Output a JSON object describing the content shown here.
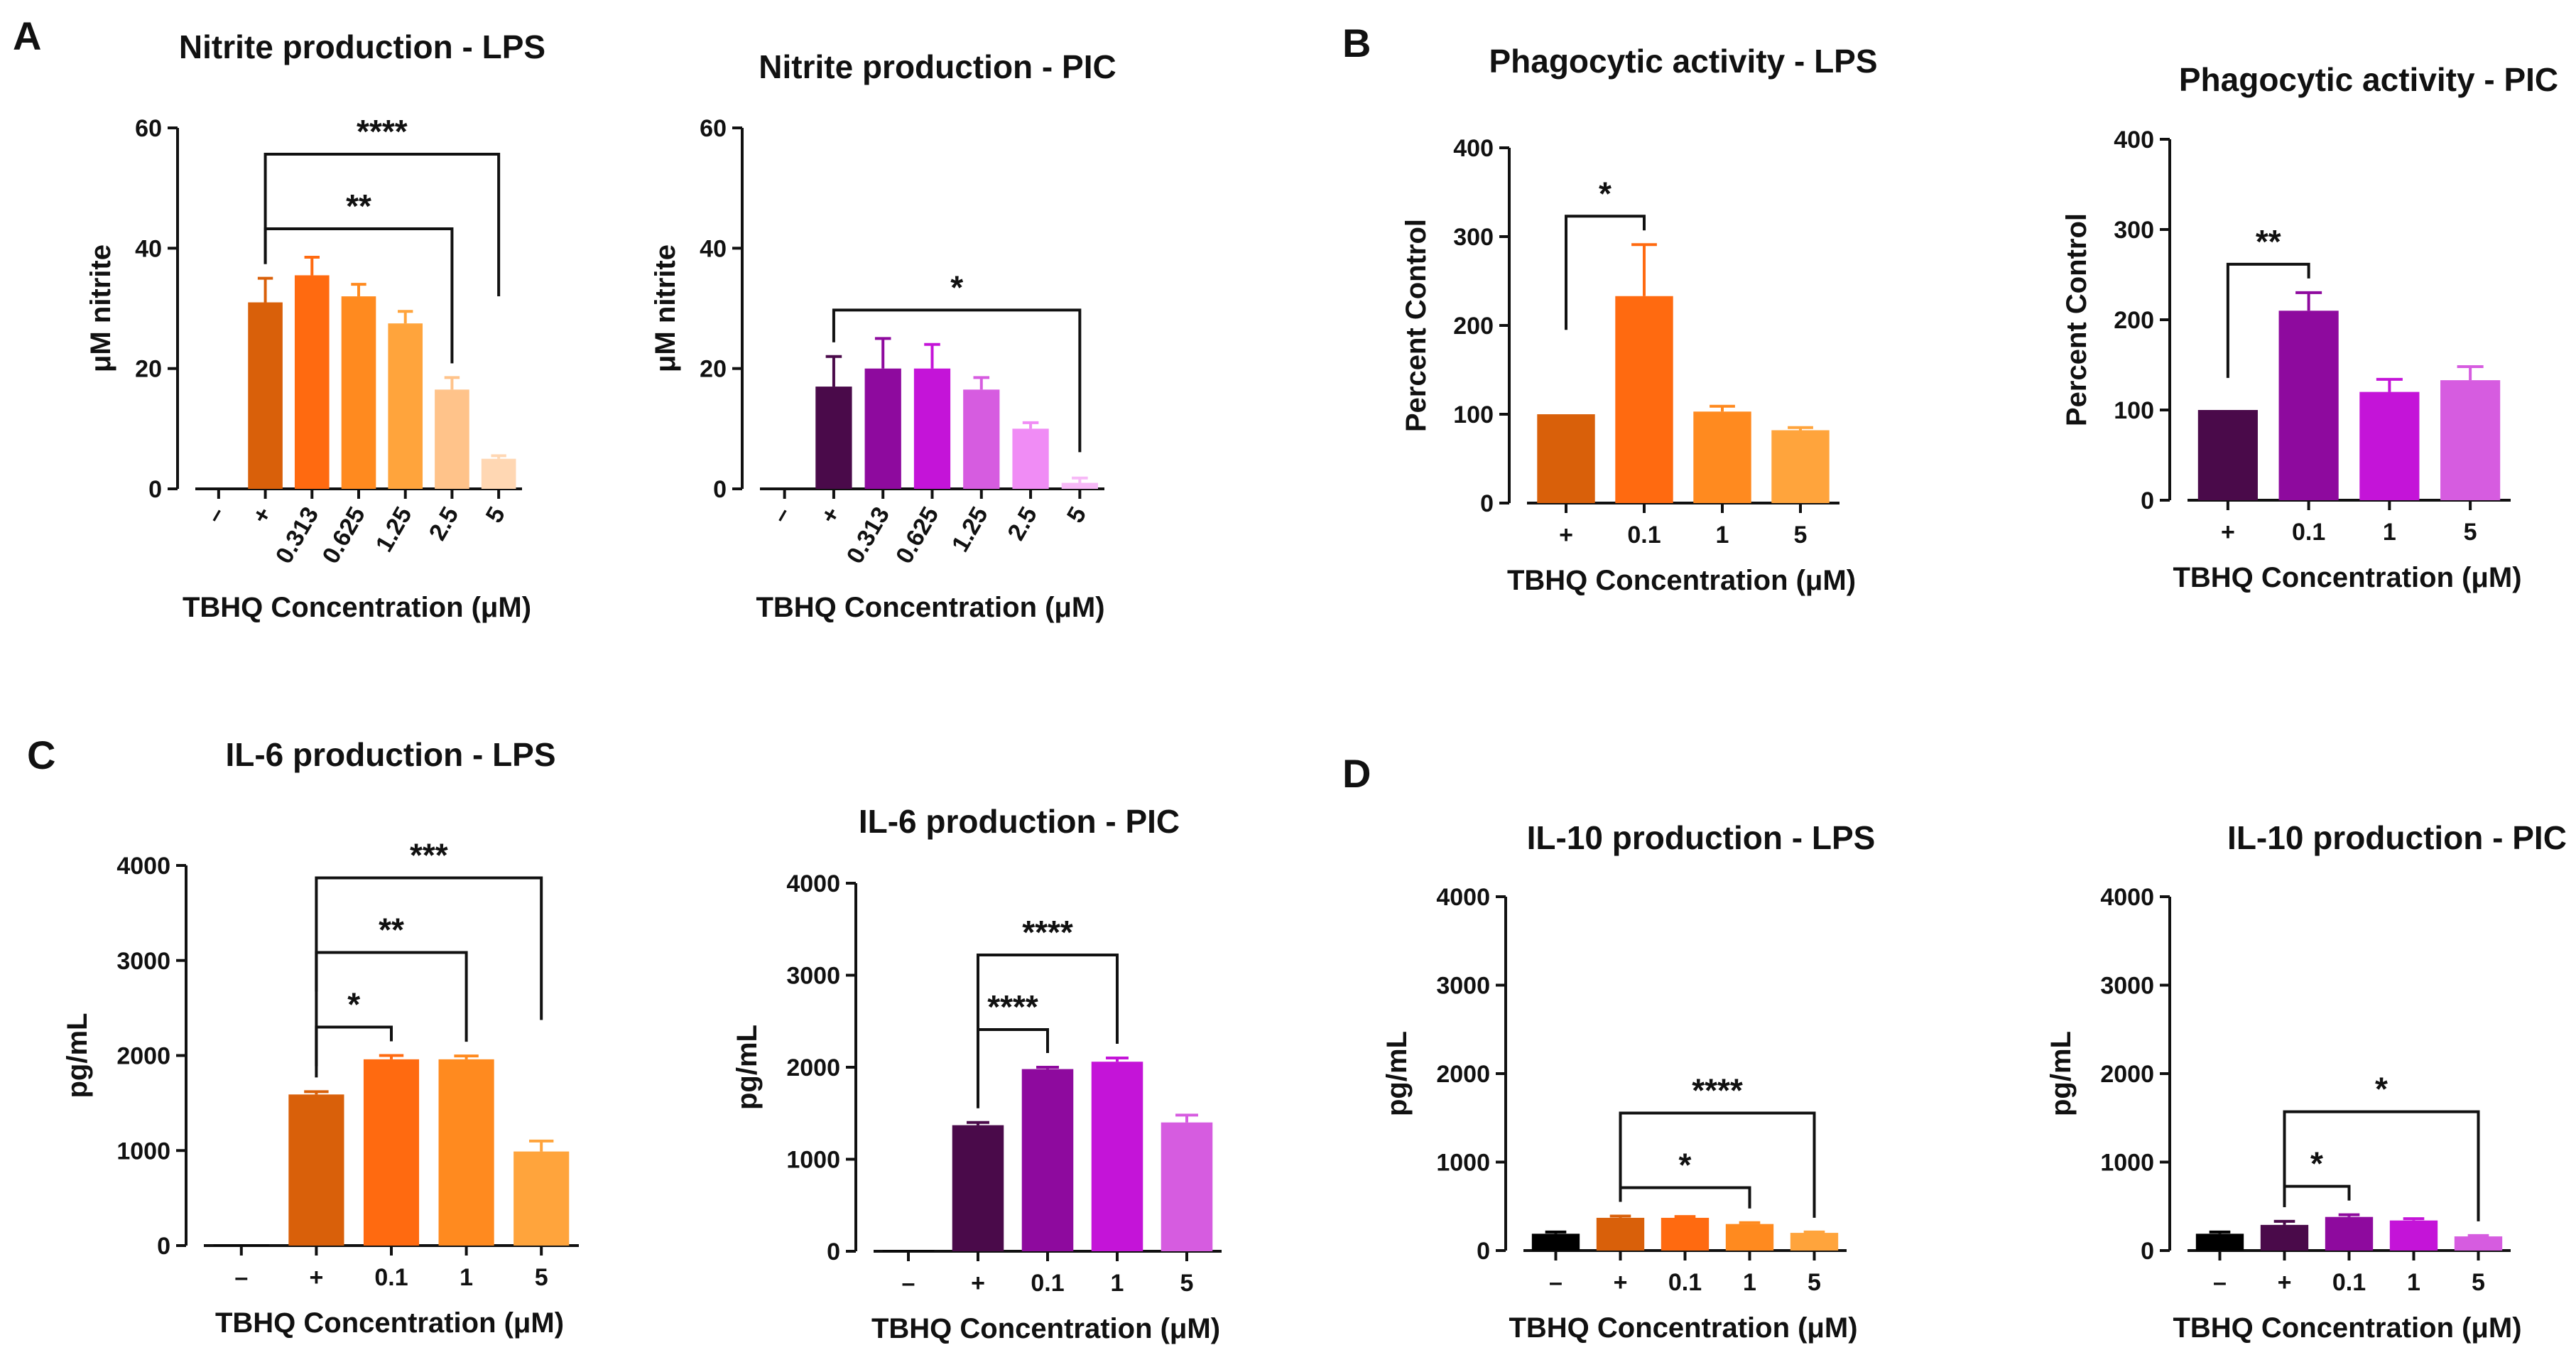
{
  "panel_letters": [
    "A",
    "B",
    "C",
    "D"
  ],
  "chart_data": [
    {
      "type": "bar",
      "title": "Nitrite production - LPS",
      "xlabel": "TBHQ Concentration (μM)",
      "ylabel": "μM nitrite",
      "ylim": [
        0,
        60
      ],
      "yticks": [
        "0",
        "20",
        "40",
        "60"
      ],
      "categories": [
        "–",
        "+",
        "0.313",
        "0.625",
        "1.25",
        "2.5",
        "5"
      ],
      "values": [
        0,
        31,
        35.5,
        32,
        27.5,
        16.5,
        5
      ],
      "errors": [
        0,
        4,
        3,
        2,
        2,
        2,
        0.5
      ],
      "colors": [
        "#000000",
        "#d9600a",
        "#ff6a10",
        "#ff8a1f",
        "#ffa43c",
        "#ffc38a",
        "#ffd7b3"
      ],
      "significance": [
        {
          "from": 1,
          "to": 6,
          "label": "****"
        },
        {
          "from": 1,
          "to": 5,
          "label": "**"
        }
      ]
    },
    {
      "type": "bar",
      "title": "Nitrite production - PIC",
      "xlabel": "TBHQ Concentration (μM)",
      "ylabel": "μM nitrite",
      "ylim": [
        0,
        60
      ],
      "yticks": [
        "0",
        "20",
        "40",
        "60"
      ],
      "categories": [
        "–",
        "+",
        "0.313",
        "0.625",
        "1.25",
        "2.5",
        "5"
      ],
      "values": [
        0,
        17,
        20,
        20,
        16.5,
        10,
        1
      ],
      "errors": [
        0,
        5,
        5,
        4,
        2,
        1,
        0.8
      ],
      "colors": [
        "#000000",
        "#4a0a4a",
        "#8e0a9e",
        "#c414d8",
        "#d65ce0",
        "#f08cf5",
        "#f7b9f7"
      ],
      "significance": [
        {
          "from": 1,
          "to": 6,
          "label": "*"
        }
      ]
    },
    {
      "type": "bar",
      "title": "Phagocytic activity - LPS",
      "xlabel": "TBHQ Concentration (μM)",
      "ylabel": "Percent Control",
      "ylim": [
        0,
        400
      ],
      "yticks": [
        "0",
        "100",
        "200",
        "300",
        "400"
      ],
      "categories": [
        "+",
        "0.1",
        "1",
        "5"
      ],
      "values": [
        100,
        233,
        103,
        82
      ],
      "errors": [
        0,
        58,
        6,
        3
      ],
      "colors": [
        "#d9600a",
        "#ff6a10",
        "#ff8a1f",
        "#ffa43c"
      ],
      "significance": [
        {
          "from": 0,
          "to": 1,
          "label": "*"
        }
      ]
    },
    {
      "type": "bar",
      "title": "Phagocytic activity - PIC",
      "xlabel": "TBHQ Concentration (μM)",
      "ylabel": "Percent Control",
      "ylim": [
        0,
        400
      ],
      "yticks": [
        "0",
        "100",
        "200",
        "300",
        "400"
      ],
      "categories": [
        "+",
        "0.1",
        "1",
        "5"
      ],
      "values": [
        100,
        210,
        120,
        133
      ],
      "errors": [
        0,
        20,
        14,
        15
      ],
      "colors": [
        "#4a0a4a",
        "#8e0a9e",
        "#c414d8",
        "#d65ce0"
      ],
      "significance": [
        {
          "from": 0,
          "to": 1,
          "label": "**"
        }
      ]
    },
    {
      "type": "bar",
      "title": "IL-6 production - LPS",
      "xlabel": "TBHQ Concentration (μM)",
      "ylabel": "pg/mL",
      "ylim": [
        0,
        4000
      ],
      "yticks": [
        "0",
        "1000",
        "2000",
        "3000",
        "4000"
      ],
      "categories": [
        "–",
        "+",
        "0.1",
        "1",
        "5"
      ],
      "values": [
        10,
        1590,
        1960,
        1960,
        990
      ],
      "errors": [
        0,
        30,
        40,
        35,
        110
      ],
      "colors": [
        "#000000",
        "#d9600a",
        "#ff6a10",
        "#ff8a1f",
        "#ffa43c"
      ],
      "significance": [
        {
          "from": 1,
          "to": 4,
          "label": "***"
        },
        {
          "from": 1,
          "to": 3,
          "label": "**"
        },
        {
          "from": 1,
          "to": 2,
          "label": "*"
        }
      ]
    },
    {
      "type": "bar",
      "title": "IL-6 production - PIC",
      "xlabel": "TBHQ Concentration (μM)",
      "ylabel": "pg/mL",
      "ylim": [
        0,
        4000
      ],
      "yticks": [
        "0",
        "1000",
        "2000",
        "3000",
        "4000"
      ],
      "categories": [
        "–",
        "+",
        "0.1",
        "1",
        "5"
      ],
      "values": [
        10,
        1370,
        1980,
        2060,
        1400
      ],
      "errors": [
        0,
        30,
        20,
        40,
        80
      ],
      "colors": [
        "#000000",
        "#4a0a4a",
        "#8e0a9e",
        "#c414d8",
        "#d65ce0"
      ],
      "significance": [
        {
          "from": 1,
          "to": 3,
          "label": "****"
        },
        {
          "from": 1,
          "to": 2,
          "label": "****"
        }
      ]
    },
    {
      "type": "bar",
      "title": "IL-10 production - LPS",
      "xlabel": "TBHQ Concentration (μM)",
      "ylabel": "pg/mL",
      "ylim": [
        0,
        4000
      ],
      "yticks": [
        "0",
        "1000",
        "2000",
        "3000",
        "4000"
      ],
      "categories": [
        "–",
        "+",
        "0.1",
        "1",
        "5"
      ],
      "values": [
        190,
        370,
        370,
        300,
        200
      ],
      "errors": [
        20,
        20,
        15,
        15,
        10
      ],
      "colors": [
        "#000000",
        "#d9600a",
        "#ff6a10",
        "#ff8a1f",
        "#ffa43c"
      ],
      "significance": [
        {
          "from": 1,
          "to": 4,
          "label": "****"
        },
        {
          "from": 1,
          "to": 3,
          "label": "*"
        }
      ]
    },
    {
      "type": "bar",
      "title": "IL-10 production - PIC",
      "xlabel": "TBHQ Concentration (μM)",
      "ylabel": "pg/mL",
      "ylim": [
        0,
        4000
      ],
      "yticks": [
        "0",
        "1000",
        "2000",
        "3000",
        "4000"
      ],
      "categories": [
        "–",
        "+",
        "0.1",
        "1",
        "5"
      ],
      "values": [
        190,
        290,
        380,
        340,
        160
      ],
      "errors": [
        20,
        40,
        25,
        20,
        10
      ],
      "colors": [
        "#000000",
        "#4a0a4a",
        "#8e0a9e",
        "#c414d8",
        "#d65ce0"
      ],
      "significance": [
        {
          "from": 1,
          "to": 4,
          "label": "*"
        },
        {
          "from": 1,
          "to": 2,
          "label": "*"
        }
      ]
    }
  ]
}
